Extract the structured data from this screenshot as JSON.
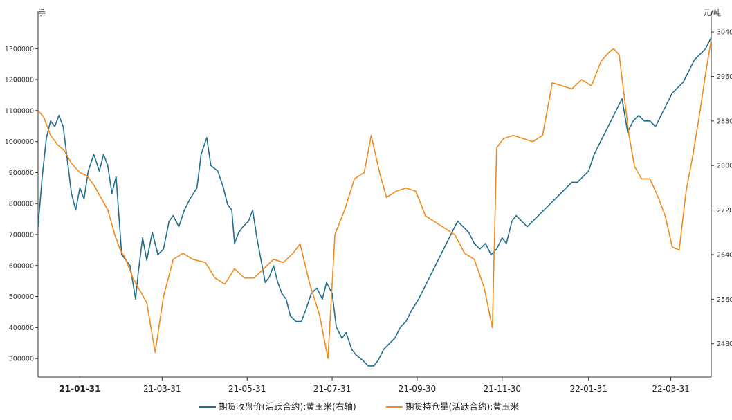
{
  "chart_data": {
    "type": "line",
    "title": "",
    "xlabel": "",
    "left_axis": {
      "unit": "手",
      "ylim": [
        240000,
        1390000
      ],
      "ticks": [
        300000,
        400000,
        500000,
        600000,
        700000,
        800000,
        900000,
        1000000,
        1100000,
        1200000,
        1300000
      ]
    },
    "right_axis": {
      "unit": "元/吨",
      "ylim": [
        2420,
        3060
      ],
      "ticks": [
        2480,
        2560,
        2640,
        2720,
        2800,
        2880,
        2960,
        3040
      ]
    },
    "x_range": [
      "2021-01-01",
      "2022-04-29"
    ],
    "x_ticks": [
      {
        "date": "2021-01-31",
        "label": "21-01-31"
      },
      {
        "date": "2021-03-31",
        "label": "21-03-31"
      },
      {
        "date": "2021-05-31",
        "label": "21-05-31"
      },
      {
        "date": "2021-07-31",
        "label": "21-07-31"
      },
      {
        "date": "2021-09-30",
        "label": "21-09-30"
      },
      {
        "date": "2021-11-30",
        "label": "21-11-30"
      },
      {
        "date": "2022-01-31",
        "label": "22-01-31"
      },
      {
        "date": "2022-03-31",
        "label": "22-03-31"
      }
    ],
    "grid": false,
    "legend_position": "bottom",
    "series": [
      {
        "name": "期货收盘价(活跃合约):黄玉米(右轴)",
        "axis": "right",
        "color": "#1f6e8c",
        "points": [
          [
            "2021-01-01",
            2690
          ],
          [
            "2021-01-04",
            2780
          ],
          [
            "2021-01-07",
            2850
          ],
          [
            "2021-01-10",
            2880
          ],
          [
            "2021-01-13",
            2870
          ],
          [
            "2021-01-16",
            2890
          ],
          [
            "2021-01-19",
            2870
          ],
          [
            "2021-01-22",
            2810
          ],
          [
            "2021-01-25",
            2750
          ],
          [
            "2021-01-28",
            2720
          ],
          [
            "2021-01-31",
            2760
          ],
          [
            "2021-02-03",
            2740
          ],
          [
            "2021-02-06",
            2790
          ],
          [
            "2021-02-10",
            2820
          ],
          [
            "2021-02-14",
            2790
          ],
          [
            "2021-02-17",
            2820
          ],
          [
            "2021-02-20",
            2800
          ],
          [
            "2021-02-23",
            2750
          ],
          [
            "2021-02-26",
            2780
          ],
          [
            "2021-03-02",
            2640
          ],
          [
            "2021-03-05",
            2630
          ],
          [
            "2021-03-08",
            2620
          ],
          [
            "2021-03-12",
            2560
          ],
          [
            "2021-03-14",
            2610
          ],
          [
            "2021-03-17",
            2670
          ],
          [
            "2021-03-20",
            2630
          ],
          [
            "2021-03-24",
            2680
          ],
          [
            "2021-03-28",
            2640
          ],
          [
            "2021-04-01",
            2650
          ],
          [
            "2021-04-05",
            2700
          ],
          [
            "2021-04-08",
            2710
          ],
          [
            "2021-04-12",
            2690
          ],
          [
            "2021-04-16",
            2720
          ],
          [
            "2021-04-20",
            2740
          ],
          [
            "2021-04-25",
            2760
          ],
          [
            "2021-04-28",
            2820
          ],
          [
            "2021-05-02",
            2850
          ],
          [
            "2021-05-05",
            2800
          ],
          [
            "2021-05-10",
            2790
          ],
          [
            "2021-05-14",
            2760
          ],
          [
            "2021-05-17",
            2730
          ],
          [
            "2021-05-20",
            2720
          ],
          [
            "2021-05-22",
            2660
          ],
          [
            "2021-05-25",
            2680
          ],
          [
            "2021-05-28",
            2690
          ],
          [
            "2021-06-01",
            2700
          ],
          [
            "2021-06-04",
            2720
          ],
          [
            "2021-06-07",
            2670
          ],
          [
            "2021-06-10",
            2630
          ],
          [
            "2021-06-13",
            2590
          ],
          [
            "2021-06-16",
            2600
          ],
          [
            "2021-06-19",
            2620
          ],
          [
            "2021-06-22",
            2590
          ],
          [
            "2021-06-25",
            2570
          ],
          [
            "2021-06-28",
            2560
          ],
          [
            "2021-07-01",
            2530
          ],
          [
            "2021-07-05",
            2520
          ],
          [
            "2021-07-09",
            2520
          ],
          [
            "2021-07-12",
            2540
          ],
          [
            "2021-07-16",
            2570
          ],
          [
            "2021-07-20",
            2580
          ],
          [
            "2021-07-24",
            2560
          ],
          [
            "2021-07-27",
            2590
          ],
          [
            "2021-07-31",
            2570
          ],
          [
            "2021-08-03",
            2510
          ],
          [
            "2021-08-07",
            2490
          ],
          [
            "2021-08-10",
            2500
          ],
          [
            "2021-08-14",
            2470
          ],
          [
            "2021-08-17",
            2460
          ],
          [
            "2021-08-22",
            2450
          ],
          [
            "2021-08-26",
            2440
          ],
          [
            "2021-08-30",
            2440
          ],
          [
            "2021-09-02",
            2450
          ],
          [
            "2021-09-06",
            2470
          ],
          [
            "2021-09-10",
            2480
          ],
          [
            "2021-09-14",
            2490
          ],
          [
            "2021-09-18",
            2510
          ],
          [
            "2021-09-22",
            2520
          ],
          [
            "2021-09-26",
            2540
          ],
          [
            "2021-10-01",
            2560
          ],
          [
            "2021-10-05",
            2580
          ],
          [
            "2021-10-09",
            2600
          ],
          [
            "2021-10-13",
            2620
          ],
          [
            "2021-10-17",
            2640
          ],
          [
            "2021-10-21",
            2660
          ],
          [
            "2021-10-25",
            2680
          ],
          [
            "2021-10-29",
            2700
          ],
          [
            "2021-11-02",
            2690
          ],
          [
            "2021-11-06",
            2680
          ],
          [
            "2021-11-10",
            2660
          ],
          [
            "2021-11-14",
            2650
          ],
          [
            "2021-11-18",
            2660
          ],
          [
            "2021-11-22",
            2640
          ],
          [
            "2021-11-26",
            2650
          ],
          [
            "2021-11-30",
            2670
          ],
          [
            "2021-12-03",
            2660
          ],
          [
            "2021-12-07",
            2700
          ],
          [
            "2021-12-10",
            2710
          ],
          [
            "2021-12-14",
            2700
          ],
          [
            "2021-12-18",
            2690
          ],
          [
            "2021-12-22",
            2700
          ],
          [
            "2021-12-26",
            2710
          ],
          [
            "2021-12-30",
            2720
          ],
          [
            "2022-01-03",
            2730
          ],
          [
            "2022-01-07",
            2740
          ],
          [
            "2022-01-11",
            2750
          ],
          [
            "2022-01-15",
            2760
          ],
          [
            "2022-01-19",
            2770
          ],
          [
            "2022-01-23",
            2770
          ],
          [
            "2022-01-27",
            2780
          ],
          [
            "2022-01-31",
            2790
          ],
          [
            "2022-02-04",
            2820
          ],
          [
            "2022-02-08",
            2840
          ],
          [
            "2022-02-12",
            2860
          ],
          [
            "2022-02-16",
            2880
          ],
          [
            "2022-02-20",
            2900
          ],
          [
            "2022-02-24",
            2920
          ],
          [
            "2022-02-28",
            2860
          ],
          [
            "2022-03-04",
            2880
          ],
          [
            "2022-03-08",
            2890
          ],
          [
            "2022-03-12",
            2880
          ],
          [
            "2022-03-16",
            2880
          ],
          [
            "2022-03-20",
            2870
          ],
          [
            "2022-03-24",
            2890
          ],
          [
            "2022-03-28",
            2910
          ],
          [
            "2022-04-01",
            2930
          ],
          [
            "2022-04-05",
            2940
          ],
          [
            "2022-04-09",
            2950
          ],
          [
            "2022-04-13",
            2970
          ],
          [
            "2022-04-17",
            2990
          ],
          [
            "2022-04-21",
            3000
          ],
          [
            "2022-04-25",
            3010
          ],
          [
            "2022-04-29",
            3030
          ]
        ]
      },
      {
        "name": "期货持仓量(活跃合约):黄玉米",
        "axis": "left",
        "color": "#f08a1e",
        "points": [
          [
            "2021-01-01",
            1100000
          ],
          [
            "2021-01-05",
            1080000
          ],
          [
            "2021-01-10",
            1020000
          ],
          [
            "2021-01-15",
            990000
          ],
          [
            "2021-01-20",
            970000
          ],
          [
            "2021-01-25",
            930000
          ],
          [
            "2021-01-31",
            900000
          ],
          [
            "2021-02-05",
            890000
          ],
          [
            "2021-02-10",
            860000
          ],
          [
            "2021-02-15",
            820000
          ],
          [
            "2021-02-20",
            780000
          ],
          [
            "2021-02-25",
            700000
          ],
          [
            "2021-03-01",
            650000
          ],
          [
            "2021-03-05",
            620000
          ],
          [
            "2021-03-10",
            560000
          ],
          [
            "2021-03-15",
            520000
          ],
          [
            "2021-03-20",
            480000
          ],
          [
            "2021-03-26",
            320000
          ],
          [
            "2021-04-01",
            500000
          ],
          [
            "2021-04-08",
            620000
          ],
          [
            "2021-04-15",
            640000
          ],
          [
            "2021-04-22",
            620000
          ],
          [
            "2021-05-01",
            610000
          ],
          [
            "2021-05-08",
            560000
          ],
          [
            "2021-05-15",
            540000
          ],
          [
            "2021-05-22",
            590000
          ],
          [
            "2021-05-29",
            560000
          ],
          [
            "2021-06-05",
            560000
          ],
          [
            "2021-06-12",
            590000
          ],
          [
            "2021-06-19",
            620000
          ],
          [
            "2021-06-26",
            610000
          ],
          [
            "2021-07-03",
            640000
          ],
          [
            "2021-07-08",
            670000
          ],
          [
            "2021-07-15",
            540000
          ],
          [
            "2021-07-22",
            440000
          ],
          [
            "2021-07-28",
            300000
          ],
          [
            "2021-08-02",
            700000
          ],
          [
            "2021-08-09",
            780000
          ],
          [
            "2021-08-16",
            880000
          ],
          [
            "2021-08-23",
            900000
          ],
          [
            "2021-08-28",
            1020000
          ],
          [
            "2021-09-03",
            900000
          ],
          [
            "2021-09-08",
            820000
          ],
          [
            "2021-09-15",
            840000
          ],
          [
            "2021-09-22",
            850000
          ],
          [
            "2021-09-29",
            840000
          ],
          [
            "2021-10-06",
            760000
          ],
          [
            "2021-10-13",
            740000
          ],
          [
            "2021-10-20",
            720000
          ],
          [
            "2021-10-27",
            700000
          ],
          [
            "2021-11-03",
            640000
          ],
          [
            "2021-11-10",
            620000
          ],
          [
            "2021-11-17",
            530000
          ],
          [
            "2021-11-23",
            400000
          ],
          [
            "2021-11-26",
            980000
          ],
          [
            "2021-12-01",
            1010000
          ],
          [
            "2021-12-08",
            1020000
          ],
          [
            "2021-12-15",
            1010000
          ],
          [
            "2021-12-22",
            1000000
          ],
          [
            "2021-12-29",
            1020000
          ],
          [
            "2022-01-05",
            1190000
          ],
          [
            "2022-01-12",
            1180000
          ],
          [
            "2022-01-19",
            1170000
          ],
          [
            "2022-01-26",
            1200000
          ],
          [
            "2022-02-02",
            1180000
          ],
          [
            "2022-02-09",
            1260000
          ],
          [
            "2022-02-15",
            1290000
          ],
          [
            "2022-02-18",
            1300000
          ],
          [
            "2022-02-22",
            1280000
          ],
          [
            "2022-03-01",
            1020000
          ],
          [
            "2022-03-05",
            920000
          ],
          [
            "2022-03-10",
            880000
          ],
          [
            "2022-03-16",
            880000
          ],
          [
            "2022-03-22",
            820000
          ],
          [
            "2022-03-27",
            760000
          ],
          [
            "2022-04-01",
            660000
          ],
          [
            "2022-04-06",
            650000
          ],
          [
            "2022-04-11",
            840000
          ],
          [
            "2022-04-16",
            960000
          ],
          [
            "2022-04-21",
            1100000
          ],
          [
            "2022-04-25",
            1220000
          ],
          [
            "2022-04-29",
            1330000
          ]
        ]
      }
    ]
  }
}
